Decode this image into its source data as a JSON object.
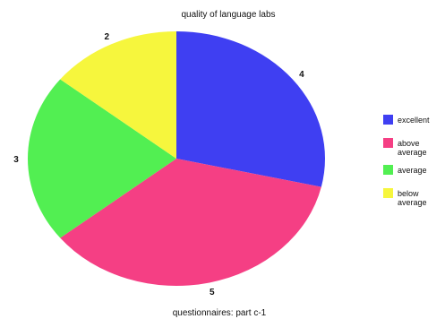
{
  "chart_data": {
    "type": "pie",
    "title": "quality of language labs",
    "xlabel": "questionnaires: part c-1",
    "categories": [
      "excellent",
      "above average",
      "average",
      "below average"
    ],
    "values": [
      4,
      5,
      3,
      2
    ],
    "data_labels": [
      "4",
      "5",
      "3",
      "2"
    ],
    "colors": [
      "#3f3ff2",
      "#f53f84",
      "#52ef52",
      "#f6f63d"
    ],
    "legend_position": "right",
    "legend": [
      {
        "lines": [
          "excellent"
        ],
        "color": "#3f3ff2"
      },
      {
        "lines": [
          "above",
          "average"
        ],
        "color": "#f53f84"
      },
      {
        "lines": [
          "average"
        ],
        "color": "#52ef52"
      },
      {
        "lines": [
          "below",
          "average"
        ],
        "color": "#f6f63d"
      }
    ]
  }
}
